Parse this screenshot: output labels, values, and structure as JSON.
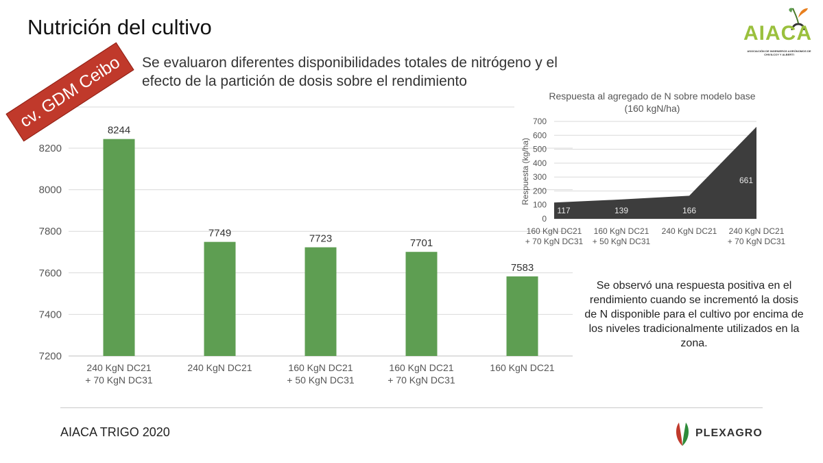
{
  "slide": {
    "title": "Nutrición del cultivo",
    "subtitle": "Se evaluaron diferentes disponibilidades totales de nitrógeno y el efecto de la partición de dosis sobre el rendimiento",
    "variety_badge": "cv. GDM Ceibo",
    "insight": "Se observó una respuesta positiva en el rendimiento cuando se incrementó la dosis de N disponible para el cultivo por encima de los niveles tradicionalmente utilizados en la zona.",
    "footer": "AIACA TRIGO 2020",
    "sponsor": "PLEXAGRO",
    "logo": {
      "word": "AIACA",
      "subtitle": "ASOCIACIÓN DE INGENIEROS AGRÓNOMOS DE CHIVILCOY Y ALBERTI"
    },
    "colors": {
      "bar": "#5e9e52",
      "area": "#3d3d3d",
      "badge": "#c0392b",
      "logo_green": "#9ac03d",
      "logo_orange": "#e87f1e"
    }
  },
  "chart_data": [
    {
      "type": "bar",
      "title": "",
      "xlabel": "",
      "ylabel": "",
      "categories": [
        "240 KgN DC21\n+ 70 KgN DC31",
        "240 KgN DC21",
        "160 KgN DC21\n+ 50 KgN DC31",
        "160 KgN DC21\n+ 70 KgN DC31",
        "160 KgN DC21"
      ],
      "values": [
        8244,
        7749,
        7723,
        7701,
        7583
      ],
      "ylim": [
        7200,
        8350
      ],
      "yticks": [
        7200,
        7400,
        7600,
        7800,
        8000,
        8200
      ],
      "grid": true
    },
    {
      "type": "area",
      "title": "Respuesta al agregado de N sobre modelo base (160 kgN/ha)",
      "xlabel": "",
      "ylabel": "Respuesta (kg/ha)",
      "categories": [
        "160 KgN DC21\n+ 70 KgN DC31",
        "160 KgN DC21\n+ 50 KgN DC31",
        "240 KgN DC21",
        "240 KgN DC21\n+ 70 KgN DC31"
      ],
      "values": [
        117,
        139,
        166,
        661
      ],
      "ylim": [
        0,
        700
      ],
      "yticks": [
        0,
        100,
        200,
        300,
        400,
        500,
        600,
        700
      ],
      "grid": true
    }
  ]
}
